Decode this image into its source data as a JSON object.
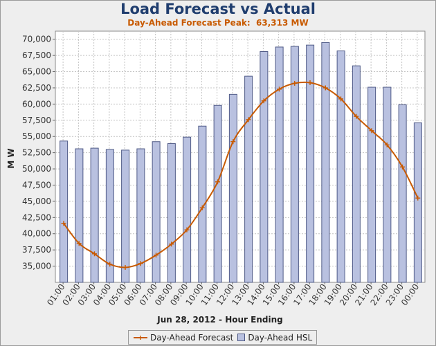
{
  "chart_data": {
    "type": "bar",
    "title": "Load Forecast vs Actual",
    "subtitle": "Day-Ahead Forecast Peak:  63,313 MW",
    "xlabel": "Jun 28, 2012 - Hour Ending",
    "ylabel": "M W",
    "ylim": [
      32500,
      71250
    ],
    "yticks": [
      35000,
      37500,
      40000,
      42500,
      45000,
      47500,
      50000,
      52500,
      55000,
      57500,
      60000,
      62500,
      65000,
      67500,
      70000
    ],
    "ytick_labels": [
      "35,000",
      "37,500",
      "40,000",
      "42,500",
      "45,000",
      "47,500",
      "50,000",
      "52,500",
      "55,000",
      "57,500",
      "60,000",
      "62,500",
      "65,000",
      "67,500",
      "70,000"
    ],
    "grid": true,
    "legend_position": "bottom",
    "categories": [
      "01:00",
      "02:00",
      "03:00",
      "04:00",
      "05:00",
      "06:00",
      "07:00",
      "08:00",
      "09:00",
      "10:00",
      "11:00",
      "12:00",
      "13:00",
      "14:00",
      "15:00",
      "16:00",
      "17:00",
      "18:00",
      "19:00",
      "20:00",
      "21:00",
      "22:00",
      "23:00",
      "00:00"
    ],
    "series": [
      {
        "name": "Day-Ahead Forecast",
        "kind": "line",
        "color": "#c85a00",
        "values": [
          41600,
          38500,
          36900,
          35300,
          34800,
          35400,
          36700,
          38400,
          40600,
          44000,
          48000,
          54200,
          57600,
          60500,
          62300,
          63200,
          63300,
          62500,
          60800,
          58100,
          55900,
          53700,
          50300,
          45500
        ]
      },
      {
        "name": "Day-Ahead HSL",
        "kind": "bar",
        "color": "#b9c1e0",
        "values": [
          54300,
          53100,
          53200,
          53000,
          52900,
          53100,
          54200,
          53900,
          54900,
          56600,
          59800,
          61500,
          64300,
          68100,
          68800,
          68900,
          69100,
          69500,
          68200,
          65900,
          62600,
          62600,
          59900,
          57100
        ]
      }
    ]
  }
}
